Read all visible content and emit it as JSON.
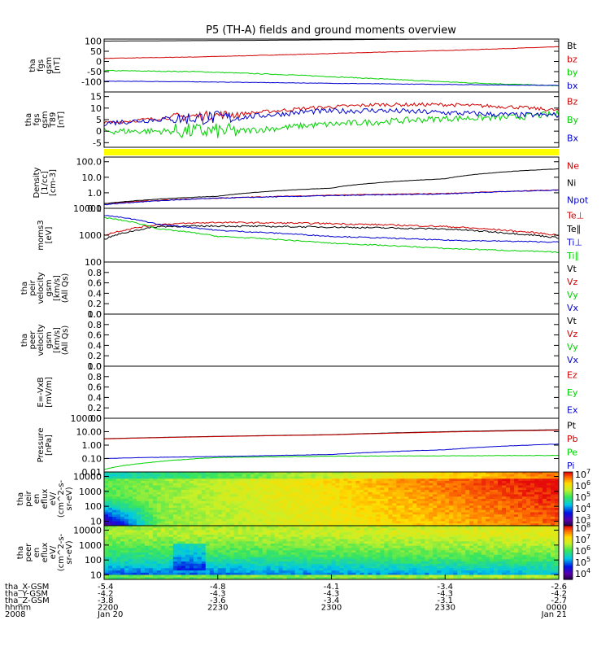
{
  "title": "P5 (TH-A) fields and ground moments overview",
  "chart_data": [
    {
      "type": "line",
      "ylabel": [
        "tha",
        "fgs",
        "gsm",
        "[nT]"
      ],
      "ylim": [
        -150,
        110
      ],
      "ticks": [
        100,
        50,
        0,
        -50,
        -100
      ],
      "ticklabels": [
        "100",
        "50",
        "0",
        "-50",
        "-100"
      ],
      "series": [
        {
          "name": "Bt",
          "color": "#000000",
          "x": [
            0,
            0.35,
            0.7,
            1
          ],
          "y": [
            100,
            104,
            110,
            115
          ],
          "noise": 0
        },
        {
          "name": "bz",
          "color": "#d00000",
          "x": [
            0,
            0.2,
            0.4,
            0.6,
            0.8,
            1
          ],
          "y": [
            15,
            22,
            33,
            45,
            57,
            72
          ],
          "noise": 1
        },
        {
          "name": "by",
          "color": "#00d000",
          "x": [
            0,
            0.2,
            0.4,
            0.6,
            0.8,
            1
          ],
          "y": [
            -45,
            -50,
            -65,
            -85,
            -105,
            -120
          ],
          "noise": 2
        },
        {
          "name": "bx",
          "color": "#0000d0",
          "x": [
            0,
            0.2,
            0.4,
            0.6,
            0.8,
            1
          ],
          "y": [
            -97,
            -100,
            -105,
            -110,
            -114,
            -118
          ],
          "noise": 1
        }
      ]
    },
    {
      "type": "line",
      "ylabel": [
        "tha",
        "fgs",
        "gsm",
        "T89",
        "[nT]"
      ],
      "ylim": [
        -7,
        17
      ],
      "ticks": [
        15,
        10,
        5,
        0,
        -5
      ],
      "ticklabels": [
        "15",
        "10",
        "5",
        "0",
        "-5"
      ],
      "series": [
        {
          "name": "Bz",
          "color": "#d00000",
          "x": [
            0,
            0.15,
            0.3,
            0.45,
            0.6,
            0.75,
            0.9,
            1
          ],
          "y": [
            3.5,
            6,
            7.5,
            10,
            11.5,
            11.5,
            10.5,
            9
          ],
          "noise": 0.8
        },
        {
          "name": "By",
          "color": "#00d000",
          "x": [
            0,
            0.15,
            0.3,
            0.45,
            0.6,
            0.75,
            0.9,
            1
          ],
          "y": [
            0,
            0,
            0,
            2.5,
            4,
            5.5,
            6,
            7.5
          ],
          "noise": 1.4
        },
        {
          "name": "Bx",
          "color": "#0000d0",
          "x": [
            0,
            0.15,
            0.3,
            0.45,
            0.6,
            0.75,
            0.9,
            1
          ],
          "y": [
            3.5,
            5.5,
            6,
            8.5,
            9,
            8,
            7,
            7
          ],
          "noise": 1.2
        }
      ]
    },
    {
      "type": "line",
      "log": true,
      "ylabel": [
        "Density",
        "[1/cc]",
        "[cm-3]"
      ],
      "ylim": [
        0.1,
        200
      ],
      "ticks": [
        100,
        10,
        1,
        0.1
      ],
      "ticklabels": [
        "100.0",
        "10.0",
        "1.0",
        "0.1"
      ],
      "series": [
        {
          "name": "Ne",
          "color": "#d00000",
          "x": [
            0,
            0.25,
            0.5,
            0.75,
            1
          ],
          "y": [
            0.2,
            0.45,
            0.7,
            0.9,
            1.5
          ],
          "noise": 0.05
        },
        {
          "name": "Ni",
          "color": "#000000",
          "x": [
            0,
            0.25,
            0.5,
            0.75,
            1
          ],
          "y": [
            0.2,
            0.6,
            2.0,
            8.0,
            35
          ],
          "noise": 0.02
        },
        {
          "name": "Npot",
          "color": "#0000d0",
          "x": [
            0,
            0.25,
            0.5,
            0.75,
            1
          ],
          "y": [
            0.17,
            0.45,
            0.65,
            0.85,
            1.5
          ],
          "noise": 0.05
        }
      ]
    },
    {
      "type": "line",
      "log": true,
      "ylabel": [
        "moms3",
        "[eV]"
      ],
      "ylim": [
        100,
        10000
      ],
      "ticks": [
        10000,
        1000,
        100
      ],
      "ticklabels": [
        "10000",
        "1000",
        "100"
      ],
      "series": [
        {
          "name": "Te⊥",
          "color": "#d00000",
          "x": [
            0,
            0.12,
            0.25,
            0.5,
            0.75,
            1
          ],
          "y": [
            1000,
            2500,
            3000,
            2700,
            2100,
            1000
          ],
          "noise": 0.06
        },
        {
          "name": "Te∥",
          "color": "#000000",
          "x": [
            0,
            0.12,
            0.25,
            0.5,
            0.75,
            1
          ],
          "y": [
            700,
            2100,
            2200,
            2000,
            1700,
            800
          ],
          "noise": 0.06
        },
        {
          "name": "Ti⊥",
          "color": "#0000d0",
          "x": [
            0,
            0.12,
            0.25,
            0.5,
            0.75,
            1
          ],
          "y": [
            5500,
            2500,
            1500,
            900,
            650,
            550
          ],
          "noise": 0.04
        },
        {
          "name": "Ti∥",
          "color": "#00d000",
          "x": [
            0,
            0.12,
            0.25,
            0.5,
            0.75,
            1
          ],
          "y": [
            4500,
            1700,
            900,
            500,
            320,
            230
          ],
          "noise": 0.04
        }
      ]
    },
    {
      "type": "line",
      "ylabel": [
        "tha",
        "peir",
        "velocity",
        "gsm",
        "[km/s]",
        "(All Qs)"
      ],
      "ylim": [
        0,
        1
      ],
      "ticks": [
        0.8,
        0.6,
        0.4,
        0.2,
        0.0
      ],
      "ticklabels": [
        "0.8",
        "0.6",
        "0.4",
        "0.2",
        "0.0"
      ],
      "legend_labels": [
        {
          "name": "Vt",
          "color": "#000000"
        },
        {
          "name": "Vz",
          "color": "#d00000"
        },
        {
          "name": "Vy",
          "color": "#00d000"
        },
        {
          "name": "Vx",
          "color": "#0000d0"
        }
      ],
      "series": []
    },
    {
      "type": "line",
      "ylabel": [
        "tha",
        "peer",
        "velocity",
        "gsm",
        "[km/s]",
        "(All Qs)"
      ],
      "ylim": [
        0,
        1
      ],
      "ticks": [
        1.0,
        0.8,
        0.6,
        0.4,
        0.2,
        0.0
      ],
      "ticklabels": [
        "1.0",
        "0.8",
        "0.6",
        "0.4",
        "0.2",
        "0.0"
      ],
      "legend_labels": [
        {
          "name": "Vt",
          "color": "#000000"
        },
        {
          "name": "Vz",
          "color": "#d00000"
        },
        {
          "name": "Vy",
          "color": "#00d000"
        },
        {
          "name": "Vx",
          "color": "#0000d0"
        }
      ],
      "series": []
    },
    {
      "type": "line",
      "ylabel": [
        "E=-VxB",
        "[mV/m]"
      ],
      "ylim": [
        0,
        1
      ],
      "ticks": [
        1.0,
        0.8,
        0.6,
        0.4,
        0.2,
        0.0
      ],
      "ticklabels": [
        "1.0",
        "0.8",
        "0.6",
        "0.4",
        "0.2",
        "0.0"
      ],
      "legend_labels": [
        {
          "name": "Ez",
          "color": "#d00000"
        },
        {
          "name": "Ey",
          "color": "#00d000"
        },
        {
          "name": "Ex",
          "color": "#0000d0"
        }
      ],
      "series": []
    },
    {
      "type": "line",
      "log": true,
      "ylabel": [
        "Pressure",
        "[nPa]"
      ],
      "ylim": [
        0.01,
        100
      ],
      "ticks": [
        100,
        10,
        1,
        0.1,
        0.01
      ],
      "ticklabels": [
        "100.00",
        "10.00",
        "1.00",
        "0.10",
        "0.01"
      ],
      "series": [
        {
          "name": "Pt",
          "color": "#000000",
          "x": [
            0,
            0.5,
            1
          ],
          "y": [
            3.0,
            6.0,
            14
          ],
          "noise": 0
        },
        {
          "name": "Pb",
          "color": "#d00000",
          "x": [
            0,
            0.5,
            1
          ],
          "y": [
            2.9,
            5.8,
            13
          ],
          "noise": 0
        },
        {
          "name": "Pe",
          "color": "#00d000",
          "x": [
            0,
            0.1,
            0.25,
            0.5,
            1
          ],
          "y": [
            0.015,
            0.05,
            0.12,
            0.15,
            0.17
          ],
          "noise": 0.03
        },
        {
          "name": "Pi",
          "color": "#0000d0",
          "x": [
            0,
            0.1,
            0.3,
            0.5,
            0.75,
            1
          ],
          "y": [
            0.1,
            0.12,
            0.15,
            0.2,
            0.45,
            1.2
          ],
          "noise": 0.02
        }
      ]
    },
    {
      "type": "heatmap",
      "ylabel": [
        "tha",
        "peir",
        "en",
        "eflux",
        "eV/",
        "(cm^2-s-",
        "sr-eV)"
      ],
      "ylim": [
        5,
        20000
      ],
      "ticks": [
        10000,
        1000,
        100,
        10
      ],
      "ticklabels": [
        "10000",
        "1000",
        "100",
        "10"
      ],
      "colorbar": {
        "ticks": [
          7,
          6,
          5,
          4,
          3
        ],
        "ticklabels": [
          "10^7",
          "10^6",
          "10^5",
          "10^4",
          "10^3"
        ],
        "range": [
          2.5,
          7.2
        ]
      },
      "description": "ion energy flux spectrogram"
    },
    {
      "type": "heatmap",
      "ylabel": [
        "tha",
        "peer",
        "en",
        "eflux",
        "eV/",
        "(cm^2-s-",
        "sr-eV)"
      ],
      "ylim": [
        5,
        20000
      ],
      "ticks": [
        10000,
        1000,
        100,
        10
      ],
      "ticklabels": [
        "10000",
        "1000",
        "100",
        "10"
      ],
      "colorbar": {
        "ticks": [
          8,
          7,
          6,
          5,
          4
        ],
        "ticklabels": [
          "10^8",
          "10^7",
          "10^6",
          "10^5",
          "10^4"
        ],
        "range": [
          3.5,
          8.2
        ]
      },
      "description": "electron energy flux spectrogram"
    }
  ],
  "x_axis": {
    "rows": [
      {
        "label": "tha_X-GSM",
        "values": [
          "-5.4",
          "-4.8",
          "-4.1",
          "-3.4",
          "-2.6"
        ]
      },
      {
        "label": "tha_Y-GSM",
        "values": [
          "-4.2",
          "-4.3",
          "-4.3",
          "-4.3",
          "-4.2"
        ]
      },
      {
        "label": "tha_Z-GSM",
        "values": [
          "-3.8",
          "-3.6",
          "-3.4",
          "-3.1",
          "-2.7"
        ]
      },
      {
        "label": "hhmm",
        "values": [
          "2200",
          "2230",
          "2300",
          "2330",
          "0000"
        ]
      },
      {
        "label": "2008",
        "values": [
          "Jan 20",
          "",
          "",
          "",
          "Jan 21"
        ]
      }
    ],
    "tick_fractions": [
      0,
      0.25,
      0.5,
      0.75,
      1
    ]
  }
}
